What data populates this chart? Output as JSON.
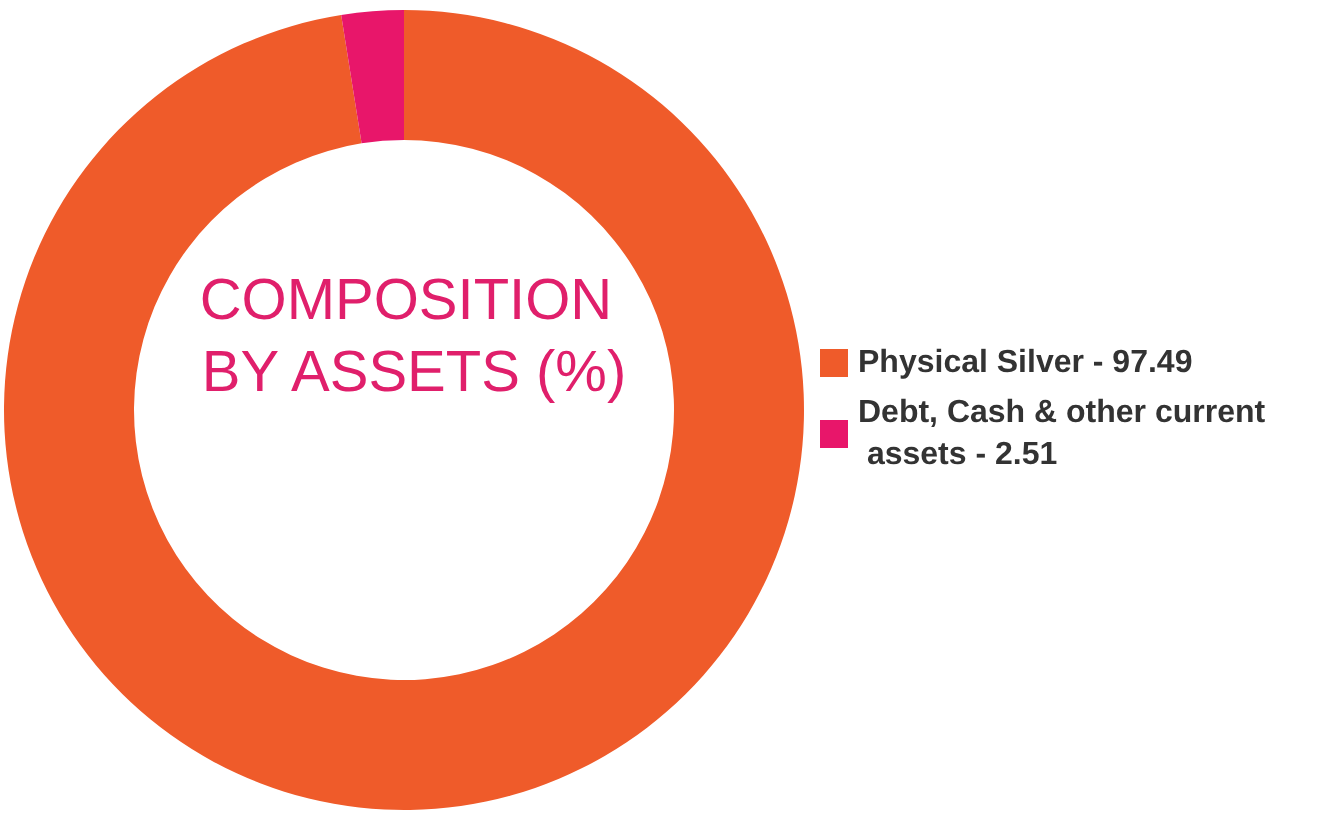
{
  "chart_data": {
    "type": "donut",
    "title": "COMPOSITION BY ASSETS (%)",
    "categories": [
      "Physical Silver - 97.49",
      "Debt, Cash & other current assets - 2.51"
    ],
    "values": [
      97.49,
      2.51
    ],
    "colors": [
      "#ef5b2a",
      "#e8166a"
    ],
    "legend": "right"
  }
}
